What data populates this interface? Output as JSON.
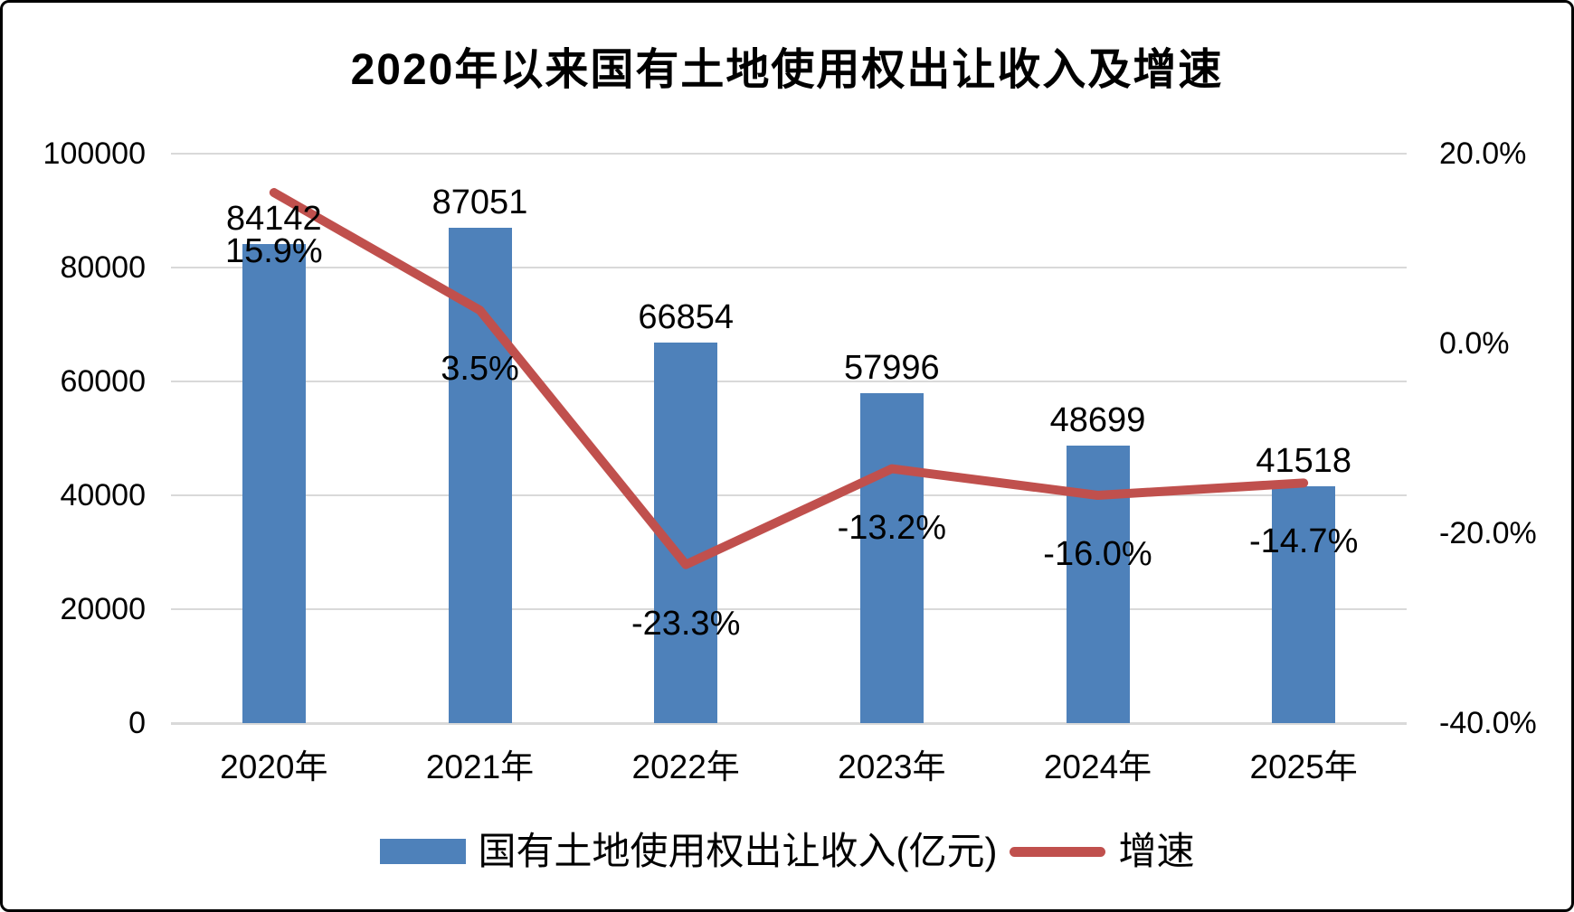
{
  "chart_data": {
    "type": "bar",
    "title": "2020年以来国有土地使用权出让收入及增速",
    "categories": [
      "2020年",
      "2021年",
      "2022年",
      "2023年",
      "2024年",
      "2025年"
    ],
    "series": [
      {
        "name": "国有土地使用权出让收入(亿元)",
        "type": "bar",
        "axis": "left",
        "color": "#4e81ba",
        "values": [
          84142,
          87051,
          66854,
          57996,
          48699,
          41518
        ],
        "labels": [
          "84142",
          "87051",
          "66854",
          "57996",
          "48699",
          "41518"
        ]
      },
      {
        "name": "增速",
        "type": "line",
        "axis": "right",
        "color": "#c0504d",
        "values": [
          15.9,
          3.5,
          -23.3,
          -13.2,
          -16.0,
          -14.7
        ],
        "labels": [
          "15.9%",
          "3.5%",
          "-23.3%",
          "-13.2%",
          "-16.0%",
          "-14.7%"
        ]
      }
    ],
    "left_axis": {
      "min": 0,
      "max": 100000,
      "ticks": [
        "100000",
        "80000",
        "60000",
        "40000",
        "20000",
        "0"
      ]
    },
    "right_axis": {
      "min": -40,
      "max": 20,
      "ticks": [
        "20.0%",
        "0.0%",
        "-20.0%",
        "-40.0%"
      ]
    },
    "grid": true,
    "legend_position": "bottom",
    "colors": {
      "bar": "#4e81ba",
      "line": "#c0504d",
      "gridline": "#d9d9d9",
      "text": "#000000"
    }
  }
}
